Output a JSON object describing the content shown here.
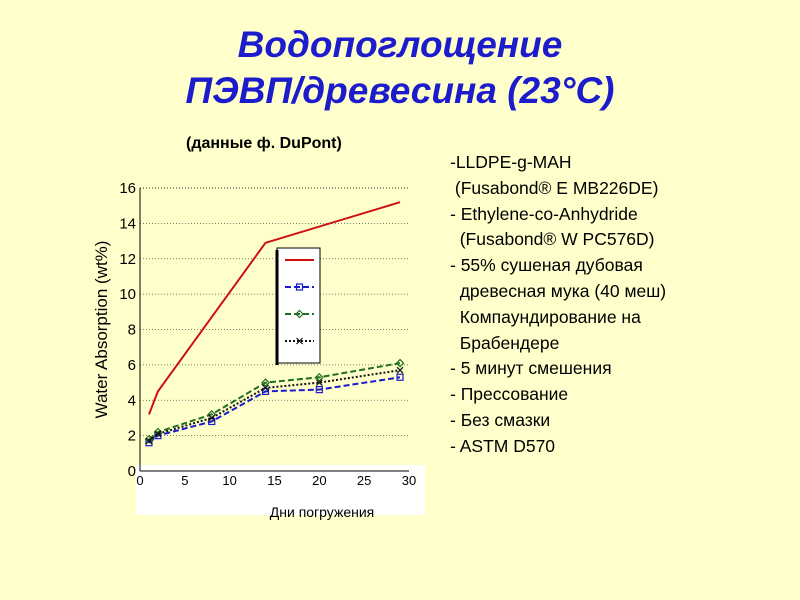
{
  "slide": {
    "title_line1": "Водопоглощение",
    "title_line2": "ПЭВП/древесина (23°C)",
    "subtitle": "(данные ф. DuPont)",
    "notes": [
      "-LLDPE-g-MAH",
      " (Fusabond® E MB226DE)",
      "- Ethylene-co-Anhydride",
      "  (Fusabond® W PC576D)",
      "- 55% сушеная дубовая",
      "  древесная мука (40 меш)",
      "  Компаундирование на",
      "  Брабендере",
      "- 5 минут смешения",
      "- Прессование",
      "- Без смазки",
      "- ASTM D570"
    ]
  },
  "chart_data": {
    "type": "line",
    "title": "",
    "xlabel": "Дни погружения",
    "ylabel": "Water Absorption (wt%)",
    "xlim": [
      0,
      30
    ],
    "ylim": [
      0,
      16
    ],
    "xticks": [
      0,
      5,
      10,
      15,
      20,
      25,
      30
    ],
    "yticks": [
      0,
      2,
      4,
      6,
      8,
      10,
      12,
      14,
      16
    ],
    "grid": "horizontal dotted",
    "legend_position": "center",
    "series": [
      {
        "color": "#cc1111",
        "dash": "solid",
        "marker": "none",
        "x": [
          1,
          2,
          14,
          29
        ],
        "y": [
          3.2,
          4.5,
          12.9,
          15.2
        ]
      },
      {
        "color": "#1a1acc",
        "dash": "dashed",
        "marker": "square",
        "x": [
          1,
          2,
          8,
          14,
          20,
          29
        ],
        "y": [
          1.6,
          2.0,
          2.8,
          4.5,
          4.6,
          5.3
        ]
      },
      {
        "color": "#1e6e1e",
        "dash": "dashed",
        "marker": "diamond",
        "x": [
          1,
          2,
          8,
          14,
          20,
          29
        ],
        "y": [
          1.8,
          2.2,
          3.2,
          5.0,
          5.3,
          6.1
        ]
      },
      {
        "color": "#111111",
        "dash": "dotted",
        "marker": "x",
        "x": [
          1,
          2,
          8,
          14,
          20,
          29
        ],
        "y": [
          1.7,
          2.1,
          3.0,
          4.7,
          5.0,
          5.7
        ]
      }
    ]
  }
}
